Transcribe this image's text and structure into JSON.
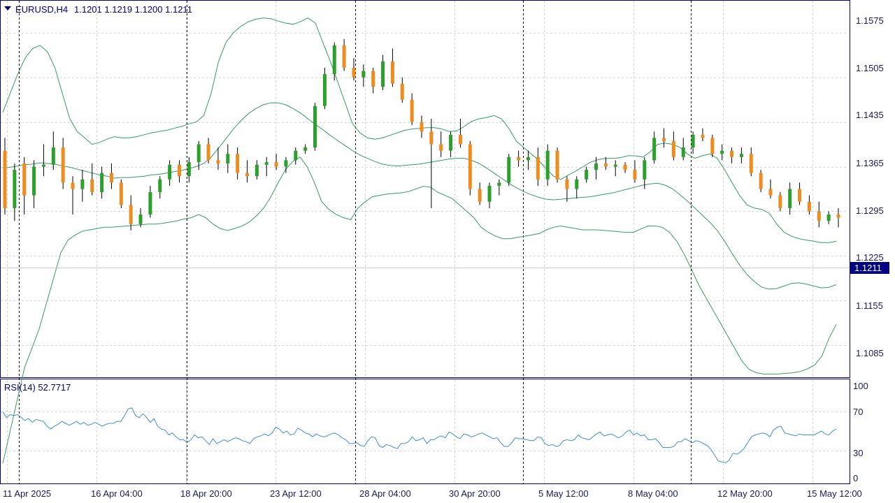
{
  "header": {
    "symbol": "EURUSD,H4",
    "ohlc": "1.1201 1.1219 1.1200 1.1211"
  },
  "rsi_header": "RSI(14) 52.7717",
  "price_tag": "1.1211",
  "colors": {
    "bull": "#2ca02c",
    "bear": "#f08c1e",
    "band": "#33a060",
    "rsi": "#3f8fd8",
    "axis": "#000080",
    "tag_bg": "#000080"
  },
  "chart_data": [
    {
      "type": "candlestick",
      "title": "EURUSD,H4",
      "ylim": [
        1.1035,
        1.1625
      ],
      "y_ticks": [
        "1.1575",
        "1.1505",
        "1.1435",
        "1.1365",
        "1.1295",
        "1.1225",
        "1.1155",
        "1.1085"
      ],
      "x_ticks": [
        "11 Apr 2025",
        "16 Apr 04:00",
        "18 Apr 20:00",
        "23 Apr 12:00",
        "28 Apr 04:00",
        "30 Apr 20:00",
        "5 May 12:00",
        "8 May 04:00",
        "12 May 20:00",
        "15 May 12:00"
      ],
      "last_price": 1.1211,
      "bollinger_middle": [
        1.1363,
        1.1364,
        1.1366,
        1.1368,
        1.1369,
        1.1371,
        1.137,
        1.1369,
        1.1366,
        1.1364,
        1.1361,
        1.1358,
        1.1355,
        1.1352,
        1.135,
        1.1347,
        1.1348,
        1.1348,
        1.1349,
        1.135,
        1.1352,
        1.1353,
        1.1355,
        1.1357,
        1.1359,
        1.1362,
        1.1365,
        1.137,
        1.138,
        1.1394,
        1.1409,
        1.1424,
        1.1437,
        1.1448,
        1.1456,
        1.1462,
        1.1465,
        1.1465,
        1.1462,
        1.1456,
        1.1449,
        1.144,
        1.1431,
        1.1423,
        1.1414,
        1.1406,
        1.1398,
        1.139,
        1.1383,
        1.1378,
        1.1373,
        1.1369,
        1.1367,
        1.1366,
        1.1367,
        1.1368,
        1.1369,
        1.1371,
        1.1373,
        1.1375,
        1.1377,
        1.1378,
        1.1378,
        1.1375,
        1.137,
        1.1363,
        1.1355,
        1.1347,
        1.1339,
        1.1332,
        1.1326,
        1.1321,
        1.1317,
        1.1314,
        1.1313,
        1.1314,
        1.1315,
        1.1316,
        1.1317,
        1.1318,
        1.132,
        1.1322,
        1.1324,
        1.1327,
        1.133,
        1.1333,
        1.1336,
        1.1338,
        1.1339,
        1.1336,
        1.133,
        1.1321,
        1.1311,
        1.13,
        1.1289,
        1.1278,
        1.1265,
        1.1248,
        1.1229,
        1.1211,
        1.1196,
        1.1185,
        1.1176,
        1.1173,
        1.1174,
        1.1178,
        1.1182,
        1.1183,
        1.1181,
        1.1178,
        1.1175,
        1.1176,
        1.118
      ],
      "bollinger_upper": [
        1.145,
        1.148,
        1.151,
        1.1535,
        1.155,
        1.1555,
        1.1545,
        1.152,
        1.148,
        1.144,
        1.142,
        1.141,
        1.14,
        1.1403,
        1.1408,
        1.1412,
        1.141,
        1.141,
        1.1412,
        1.1415,
        1.1418,
        1.142,
        1.1422,
        1.1425,
        1.1428,
        1.1432,
        1.1435,
        1.1445,
        1.148,
        1.153,
        1.156,
        1.1575,
        1.1585,
        1.1592,
        1.1596,
        1.1598,
        1.1597,
        1.1593,
        1.159,
        1.1588,
        1.1592,
        1.1598,
        1.159,
        1.156,
        1.153,
        1.1498,
        1.1465,
        1.1432,
        1.1418,
        1.141,
        1.1408,
        1.141,
        1.1414,
        1.1418,
        1.1422,
        1.1424,
        1.1425,
        1.1426,
        1.1426,
        1.1424,
        1.142,
        1.1421,
        1.1428,
        1.1436,
        1.144,
        1.1442,
        1.1445,
        1.144,
        1.1425,
        1.1405,
        1.1395,
        1.1385,
        1.1375,
        1.1362,
        1.135,
        1.1345,
        1.1352,
        1.1358,
        1.1365,
        1.1372,
        1.1376,
        1.1378,
        1.1378,
        1.1379,
        1.1382,
        1.1382,
        1.138,
        1.1388,
        1.14,
        1.1402,
        1.14,
        1.1395,
        1.1385,
        1.1378,
        1.1382,
        1.1385,
        1.1378,
        1.136,
        1.134,
        1.132,
        1.1305,
        1.13,
        1.1298,
        1.1292,
        1.1275,
        1.1262,
        1.1256,
        1.1252,
        1.125,
        1.1248,
        1.1246,
        1.1246,
        1.1248
      ],
      "bollinger_lower": [
        1.09,
        1.095,
        1.1,
        1.105,
        1.108,
        1.111,
        1.115,
        1.119,
        1.123,
        1.125,
        1.1258,
        1.1264,
        1.1266,
        1.1268,
        1.127,
        1.127,
        1.1271,
        1.1272,
        1.1273,
        1.1274,
        1.1275,
        1.1275,
        1.1276,
        1.1278,
        1.128,
        1.1283,
        1.1285,
        1.129,
        1.1285,
        1.1275,
        1.1268,
        1.1265,
        1.1268,
        1.1272,
        1.1278,
        1.1288,
        1.13,
        1.1318,
        1.134,
        1.136,
        1.1373,
        1.138,
        1.1365,
        1.134,
        1.131,
        1.1298,
        1.129,
        1.1285,
        1.1282,
        1.13,
        1.131,
        1.1318,
        1.132,
        1.1322,
        1.1323,
        1.1324,
        1.1326,
        1.133,
        1.1334,
        1.1333,
        1.1325,
        1.132,
        1.1315,
        1.1305,
        1.1295,
        1.1285,
        1.127,
        1.1262,
        1.1256,
        1.1252,
        1.1252,
        1.1254,
        1.1256,
        1.1258,
        1.126,
        1.1266,
        1.127,
        1.1272,
        1.127,
        1.1268,
        1.1266,
        1.1266,
        1.1266,
        1.1265,
        1.1264,
        1.1263,
        1.1262,
        1.1262,
        1.1267,
        1.1272,
        1.1272,
        1.127,
        1.1262,
        1.1248,
        1.1228,
        1.1205,
        1.118,
        1.116,
        1.114,
        1.112,
        1.11,
        1.108,
        1.106,
        1.1047,
        1.1042,
        1.104,
        1.104,
        1.104,
        1.1041,
        1.1042,
        1.1044,
        1.1048,
        1.1054,
        1.1068,
        1.1096,
        1.1118
      ],
      "candles": [
        [
          1.139,
          1.141,
          1.129,
          1.13
        ],
        [
          1.13,
          1.137,
          1.128,
          1.136
        ],
        [
          1.137,
          1.138,
          1.129,
          1.132
        ],
        [
          1.132,
          1.1375,
          1.13,
          1.1365
        ],
        [
          1.1365,
          1.14,
          1.135,
          1.1368
        ],
        [
          1.1368,
          1.142,
          1.136,
          1.1395
        ],
        [
          1.1395,
          1.141,
          1.133,
          1.134
        ],
        [
          1.134,
          1.135,
          1.129,
          1.133
        ],
        [
          1.133,
          1.136,
          1.131,
          1.1345
        ],
        [
          1.1345,
          1.137,
          1.132,
          1.1325
        ],
        [
          1.1325,
          1.1365,
          1.1315,
          1.1355
        ],
        [
          1.1355,
          1.137,
          1.133,
          1.134
        ],
        [
          1.134,
          1.1345,
          1.13,
          1.1305
        ],
        [
          1.1305,
          1.132,
          1.1265,
          1.1275
        ],
        [
          1.1275,
          1.13,
          1.127,
          1.129
        ],
        [
          1.129,
          1.1335,
          1.1285,
          1.1325
        ],
        [
          1.1325,
          1.135,
          1.1315,
          1.1345
        ],
        [
          1.1345,
          1.1375,
          1.1335,
          1.1368
        ],
        [
          1.1368,
          1.1375,
          1.134,
          1.135
        ],
        [
          1.135,
          1.138,
          1.134,
          1.1372
        ],
        [
          1.1372,
          1.1405,
          1.136,
          1.14
        ],
        [
          1.14,
          1.141,
          1.137,
          1.1375
        ],
        [
          1.1375,
          1.1395,
          1.136,
          1.137
        ],
        [
          1.137,
          1.14,
          1.1355,
          1.1385
        ],
        [
          1.1385,
          1.1395,
          1.1345,
          1.1355
        ],
        [
          1.1355,
          1.1375,
          1.134,
          1.135
        ],
        [
          1.135,
          1.1375,
          1.1345,
          1.1368
        ],
        [
          1.1368,
          1.138,
          1.135,
          1.1372
        ],
        [
          1.1372,
          1.1385,
          1.136,
          1.1365
        ],
        [
          1.1365,
          1.138,
          1.1355,
          1.1375
        ],
        [
          1.1375,
          1.1395,
          1.1368,
          1.139
        ],
        [
          1.139,
          1.14,
          1.1385,
          1.1395
        ],
        [
          1.1395,
          1.1465,
          1.139,
          1.146
        ],
        [
          1.146,
          1.152,
          1.1455,
          1.151
        ],
        [
          1.151,
          1.156,
          1.15,
          1.1555
        ],
        [
          1.1555,
          1.1565,
          1.1515,
          1.152
        ],
        [
          1.152,
          1.1535,
          1.15,
          1.1505
        ],
        [
          1.1505,
          1.1525,
          1.149,
          1.1515
        ],
        [
          1.1515,
          1.152,
          1.148,
          1.149
        ],
        [
          1.149,
          1.154,
          1.1485,
          1.153
        ],
        [
          1.153,
          1.155,
          1.149,
          1.1495
        ],
        [
          1.1495,
          1.1505,
          1.1465,
          1.147
        ],
        [
          1.147,
          1.148,
          1.143,
          1.1435
        ],
        [
          1.1435,
          1.1445,
          1.141,
          1.142
        ],
        [
          1.142,
          1.144,
          1.13,
          1.14
        ],
        [
          1.14,
          1.142,
          1.138,
          1.139
        ],
        [
          1.139,
          1.142,
          1.138,
          1.1415
        ],
        [
          1.1415,
          1.144,
          1.1395,
          1.14
        ],
        [
          1.14,
          1.1405,
          1.132,
          1.133
        ],
        [
          1.133,
          1.134,
          1.1305,
          1.131
        ],
        [
          1.131,
          1.134,
          1.13,
          1.1335
        ],
        [
          1.1335,
          1.1345,
          1.132,
          1.134
        ],
        [
          1.134,
          1.1385,
          1.1335,
          1.138
        ],
        [
          1.138,
          1.139,
          1.1365,
          1.1375
        ],
        [
          1.1375,
          1.139,
          1.136,
          1.138
        ],
        [
          1.138,
          1.1395,
          1.1335,
          1.1345
        ],
        [
          1.1345,
          1.14,
          1.1335,
          1.139
        ],
        [
          1.139,
          1.1395,
          1.134,
          1.1345
        ],
        [
          1.1345,
          1.135,
          1.131,
          1.133
        ],
        [
          1.133,
          1.135,
          1.1315,
          1.1345
        ],
        [
          1.1345,
          1.1365,
          1.134,
          1.136
        ],
        [
          1.136,
          1.138,
          1.1345,
          1.137
        ],
        [
          1.137,
          1.138,
          1.136,
          1.1365
        ],
        [
          1.1365,
          1.1375,
          1.135,
          1.1368
        ],
        [
          1.1368,
          1.1372,
          1.1355,
          1.136
        ],
        [
          1.136,
          1.1375,
          1.134,
          1.1345
        ],
        [
          1.1345,
          1.138,
          1.133,
          1.1375
        ],
        [
          1.1375,
          1.142,
          1.137,
          1.141
        ],
        [
          1.141,
          1.1425,
          1.1395,
          1.1405
        ],
        [
          1.1405,
          1.142,
          1.1375,
          1.138
        ],
        [
          1.138,
          1.141,
          1.1375,
          1.1395
        ],
        [
          1.1395,
          1.142,
          1.1385,
          1.1415
        ],
        [
          1.1415,
          1.1425,
          1.1405,
          1.141
        ],
        [
          1.141,
          1.1415,
          1.138,
          1.1385
        ],
        [
          1.1385,
          1.14,
          1.1375,
          1.139
        ],
        [
          1.139,
          1.1395,
          1.137,
          1.138
        ],
        [
          1.138,
          1.1395,
          1.137,
          1.1385
        ],
        [
          1.1385,
          1.1395,
          1.135,
          1.1355
        ],
        [
          1.1355,
          1.136,
          1.1325,
          1.133
        ],
        [
          1.133,
          1.1345,
          1.1315,
          1.132
        ],
        [
          1.132,
          1.1325,
          1.1295,
          1.13
        ],
        [
          1.13,
          1.134,
          1.129,
          1.133
        ],
        [
          1.133,
          1.134,
          1.1305,
          1.131
        ],
        [
          1.131,
          1.132,
          1.129,
          1.1295
        ],
        [
          1.1295,
          1.131,
          1.127,
          1.128
        ],
        [
          1.128,
          1.1295,
          1.1275,
          1.129
        ],
        [
          1.129,
          1.13,
          1.127,
          1.1285
        ]
      ]
    },
    {
      "type": "line",
      "title": "RSI(14) 52.7717",
      "ylim": [
        0,
        100
      ],
      "y_ticks": [
        "100",
        "70",
        "30",
        "0"
      ],
      "values": [
        70,
        64,
        67,
        66,
        67,
        64,
        61,
        63,
        59,
        62,
        61,
        60,
        55,
        52,
        55,
        57,
        60,
        58,
        56,
        58,
        60,
        57,
        59,
        56,
        57,
        59,
        57,
        55,
        57,
        58,
        58,
        60,
        60,
        66,
        73,
        74,
        66,
        64,
        68,
        64,
        59,
        63,
        55,
        52,
        51,
        46,
        48,
        44,
        41,
        41,
        38,
        41,
        46,
        43,
        44,
        40,
        36,
        42,
        37,
        39,
        41,
        39,
        41,
        43,
        42,
        40,
        39,
        37,
        42,
        44,
        45,
        47,
        45,
        48,
        54,
        52,
        48,
        50,
        46,
        47,
        53,
        51,
        48,
        47,
        44,
        47,
        45,
        44,
        45,
        47,
        48,
        46,
        43,
        41,
        37,
        37,
        38,
        35,
        34,
        40,
        44,
        43,
        35,
        33,
        36,
        35,
        33,
        32,
        37,
        37,
        39,
        44,
        40,
        41,
        43,
        37,
        41,
        41,
        44,
        45,
        43,
        49,
        47,
        44,
        42,
        47,
        46,
        44,
        45,
        47,
        48,
        46,
        44,
        42,
        43,
        38,
        34,
        34,
        38,
        43,
        42,
        42,
        41,
        40,
        40,
        44,
        43,
        37,
        35,
        36,
        34,
        35,
        40,
        41,
        40,
        41,
        46,
        43,
        42,
        41,
        44,
        47,
        49,
        45,
        46,
        47,
        45,
        43,
        45,
        49,
        51,
        46,
        48,
        45,
        46,
        41,
        41,
        42,
        38,
        33,
        33,
        33,
        34,
        39,
        39,
        42,
        40,
        38,
        40,
        39,
        37,
        35,
        31,
        25,
        19,
        18,
        17,
        20,
        27,
        26,
        28,
        32,
        38,
        44,
        46,
        47,
        48,
        47,
        44,
        51,
        54,
        55,
        48,
        47,
        46,
        45,
        47,
        46,
        46,
        46,
        46,
        48,
        50,
        47,
        46,
        50,
        52
      ]
    }
  ]
}
